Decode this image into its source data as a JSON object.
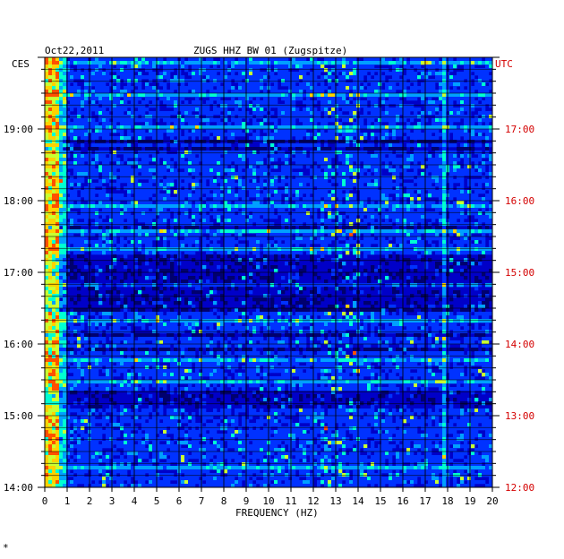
{
  "header": {
    "date": "Oct22,2011",
    "station": "ZUGS HHZ BW 01 (Zugspitze)",
    "left_tz": "CES",
    "right_tz": "UTC"
  },
  "footer_mark": "*",
  "chart_data": {
    "type": "heatmap",
    "title": "ZUGS HHZ BW 01 (Zugspitze)",
    "date": "Oct22,2011",
    "xlabel": "FREQUENCY (HZ)",
    "xlim": [
      0,
      20
    ],
    "x_ticks": [
      "0",
      "1",
      "2",
      "3",
      "4",
      "5",
      "6",
      "7",
      "8",
      "9",
      "10",
      "11",
      "12",
      "13",
      "14",
      "15",
      "16",
      "17",
      "18",
      "19",
      "20"
    ],
    "left_axis": {
      "label": "CES",
      "range": [
        "14:00",
        "20:00"
      ],
      "ticks": [
        "19:00",
        "18:00",
        "17:00",
        "16:00",
        "15:00",
        "14:00"
      ]
    },
    "right_axis": {
      "label": "UTC",
      "ticks": [
        "17:00",
        "16:00",
        "15:00",
        "14:00",
        "13:00",
        "12:00"
      ]
    },
    "colormap": [
      "#00006e",
      "#0000c8",
      "#0032ff",
      "#00a0ff",
      "#00ffd2",
      "#c8ff32",
      "#ffd200",
      "#ff5000"
    ],
    "features": {
      "background_level": "dark-blue",
      "low_frequency_band_hz": [
        0,
        0.6
      ],
      "low_frequency_band_level": "yellow-red",
      "persistent_line_hz": 17.8,
      "quiet_periods": [
        "15:05-15:20",
        "16:30-17:15"
      ],
      "event_region_hz": [
        12.5,
        14.0
      ]
    },
    "grid": true
  }
}
